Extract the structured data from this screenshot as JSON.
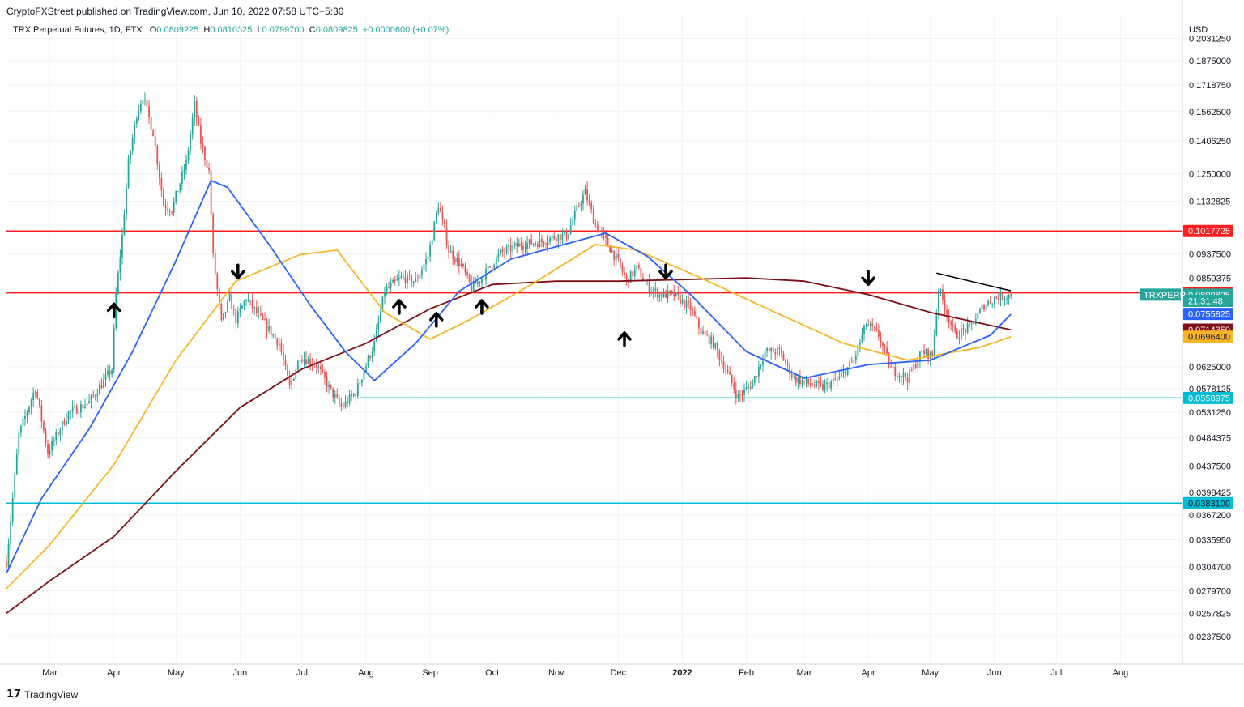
{
  "header": {
    "text": "CryptoFXStreet published on TradingView.com, Jun 10, 2022 07:58 UTC+5:30"
  },
  "legend": {
    "symbol": "TRX Perpetual Futures, 1D, FTX",
    "o_label": "O",
    "o": "0.0809225",
    "h_label": "H",
    "h": "0.0810325",
    "l_label": "L",
    "l": "0.0799700",
    "c_label": "C",
    "c": "0.0809825",
    "change": "+0.0000600 (+0.07%)"
  },
  "footer": {
    "logo": "17",
    "brand": "TradingView"
  },
  "colors": {
    "up": "#26a69a",
    "down": "#ef5350",
    "sma50": "#2962ff",
    "sma100": "#f7b527",
    "sma200": "#7f1019",
    "resistance": "#ff1f1f",
    "support": "#00bcd4",
    "grid": "#f0f3fa",
    "trendline": "#000000"
  },
  "chart_data": {
    "type": "candlestick",
    "currency_label": "USD",
    "y_scale": "log",
    "ylim": [
      0.0215,
      0.215
    ],
    "y_ticks": [
      "0.2031250",
      "0.1875000",
      "0.1718750",
      "0.1562500",
      "0.1406250",
      "0.1250000",
      "0.1132825",
      "0.0937500",
      "0.0625000",
      "0.0578125",
      "0.0531250",
      "0.0484375",
      "0.0437500",
      "0.0398425",
      "0.0367200",
      "0.0335950",
      "0.0304700",
      "0.0279700",
      "0.0257825",
      "0.0237500"
    ],
    "x_ticks": [
      "Mar",
      "Apr",
      "May",
      "Jun",
      "Jul",
      "Aug",
      "Sep",
      "Oct",
      "Nov",
      "Dec",
      "2022",
      "Feb",
      "Mar",
      "Apr",
      "May",
      "Jun",
      "Jul",
      "Aug"
    ],
    "x_range": [
      "2021-02-08",
      "2022-08-31"
    ],
    "ohlc_keypoints": [
      [
        "2021-02-08",
        0.031
      ],
      [
        "2021-02-14",
        0.049
      ],
      [
        "2021-02-22",
        0.058
      ],
      [
        "2021-02-28",
        0.046
      ],
      [
        "2021-03-10",
        0.053
      ],
      [
        "2021-03-20",
        0.055
      ],
      [
        "2021-03-31",
        0.062
      ],
      [
        "2021-04-02",
        0.081
      ],
      [
        "2021-04-05",
        0.1
      ],
      [
        "2021-04-08",
        0.13
      ],
      [
        "2021-04-12",
        0.155
      ],
      [
        "2021-04-15",
        0.165
      ],
      [
        "2021-04-20",
        0.145
      ],
      [
        "2021-04-25",
        0.112
      ],
      [
        "2021-04-29",
        0.11
      ],
      [
        "2021-05-06",
        0.13
      ],
      [
        "2021-05-10",
        0.16
      ],
      [
        "2021-05-13",
        0.14
      ],
      [
        "2021-05-17",
        0.126
      ],
      [
        "2021-05-19",
        0.093
      ],
      [
        "2021-05-23",
        0.073
      ],
      [
        "2021-05-27",
        0.08
      ],
      [
        "2021-05-30",
        0.074
      ],
      [
        "2021-06-04",
        0.08
      ],
      [
        "2021-06-10",
        0.075
      ],
      [
        "2021-06-20",
        0.068
      ],
      [
        "2021-06-25",
        0.058
      ],
      [
        "2021-06-30",
        0.065
      ],
      [
        "2021-07-08",
        0.063
      ],
      [
        "2021-07-14",
        0.058
      ],
      [
        "2021-07-20",
        0.054
      ],
      [
        "2021-07-27",
        0.057
      ],
      [
        "2021-08-05",
        0.068
      ],
      [
        "2021-08-10",
        0.082
      ],
      [
        "2021-08-18",
        0.086
      ],
      [
        "2021-08-25",
        0.085
      ],
      [
        "2021-08-31",
        0.093
      ],
      [
        "2021-09-05",
        0.112
      ],
      [
        "2021-09-10",
        0.095
      ],
      [
        "2021-09-16",
        0.09
      ],
      [
        "2021-09-21",
        0.083
      ],
      [
        "2021-09-26",
        0.086
      ],
      [
        "2021-10-05",
        0.094
      ],
      [
        "2021-10-15",
        0.097
      ],
      [
        "2021-10-25",
        0.098
      ],
      [
        "2021-11-01",
        0.1
      ],
      [
        "2021-11-06",
        0.1
      ],
      [
        "2021-11-12",
        0.112
      ],
      [
        "2021-11-15",
        0.117
      ],
      [
        "2021-11-20",
        0.104
      ],
      [
        "2021-11-26",
        0.097
      ],
      [
        "2021-12-01",
        0.091
      ],
      [
        "2021-12-05",
        0.085
      ],
      [
        "2021-12-10",
        0.089
      ],
      [
        "2021-12-16",
        0.083
      ],
      [
        "2021-12-21",
        0.081
      ],
      [
        "2021-12-28",
        0.081
      ],
      [
        "2022-01-05",
        0.077
      ],
      [
        "2022-01-10",
        0.071
      ],
      [
        "2022-01-16",
        0.068
      ],
      [
        "2022-01-22",
        0.062
      ],
      [
        "2022-01-28",
        0.056
      ],
      [
        "2022-02-04",
        0.059
      ],
      [
        "2022-02-10",
        0.066
      ],
      [
        "2022-02-17",
        0.066
      ],
      [
        "2022-02-24",
        0.06
      ],
      [
        "2022-03-02",
        0.059
      ],
      [
        "2022-03-10",
        0.058
      ],
      [
        "2022-03-18",
        0.06
      ],
      [
        "2022-03-25",
        0.064
      ],
      [
        "2022-03-31",
        0.073
      ],
      [
        "2022-04-06",
        0.07
      ],
      [
        "2022-04-12",
        0.062
      ],
      [
        "2022-04-20",
        0.06
      ],
      [
        "2022-04-27",
        0.066
      ],
      [
        "2022-05-02",
        0.065
      ],
      [
        "2022-05-05",
        0.083
      ],
      [
        "2022-05-09",
        0.076
      ],
      [
        "2022-05-13",
        0.07
      ],
      [
        "2022-05-20",
        0.072
      ],
      [
        "2022-05-27",
        0.078
      ],
      [
        "2022-06-01",
        0.08
      ],
      [
        "2022-06-09",
        0.081
      ]
    ],
    "sma50_points": [
      [
        "2021-02-08",
        0.0298
      ],
      [
        "2021-02-25",
        0.039
      ],
      [
        "2021-03-20",
        0.05
      ],
      [
        "2021-04-10",
        0.066
      ],
      [
        "2021-04-30",
        0.09
      ],
      [
        "2021-05-18",
        0.122
      ],
      [
        "2021-05-26",
        0.119
      ],
      [
        "2021-06-15",
        0.097
      ],
      [
        "2021-07-05",
        0.078
      ],
      [
        "2021-07-22",
        0.066
      ],
      [
        "2021-08-05",
        0.0595
      ],
      [
        "2021-08-25",
        0.068
      ],
      [
        "2021-09-15",
        0.082
      ],
      [
        "2021-10-10",
        0.092
      ],
      [
        "2021-11-05",
        0.097
      ],
      [
        "2021-11-25",
        0.101
      ],
      [
        "2021-12-15",
        0.093
      ],
      [
        "2022-01-05",
        0.081
      ],
      [
        "2022-02-01",
        0.066
      ],
      [
        "2022-03-01",
        0.06
      ],
      [
        "2022-04-01",
        0.063
      ],
      [
        "2022-05-01",
        0.064
      ],
      [
        "2022-05-30",
        0.07
      ],
      [
        "2022-06-09",
        0.0755
      ]
    ],
    "sma100_points": [
      [
        "2021-02-08",
        0.0282
      ],
      [
        "2021-03-01",
        0.033
      ],
      [
        "2021-04-01",
        0.044
      ],
      [
        "2021-05-01",
        0.064
      ],
      [
        "2021-05-30",
        0.085
      ],
      [
        "2021-06-30",
        0.0935
      ],
      [
        "2021-07-18",
        0.095
      ],
      [
        "2021-08-10",
        0.076
      ],
      [
        "2021-09-01",
        0.069
      ],
      [
        "2021-09-20",
        0.074
      ],
      [
        "2021-10-20",
        0.084
      ],
      [
        "2021-11-20",
        0.097
      ],
      [
        "2021-12-10",
        0.095
      ],
      [
        "2022-01-10",
        0.086
      ],
      [
        "2022-02-15",
        0.076
      ],
      [
        "2022-03-20",
        0.068
      ],
      [
        "2022-04-20",
        0.064
      ],
      [
        "2022-05-25",
        0.067
      ],
      [
        "2022-06-09",
        0.0696
      ]
    ],
    "sma200_points": [
      [
        "2021-02-08",
        0.0258
      ],
      [
        "2021-03-01",
        0.029
      ],
      [
        "2021-04-01",
        0.034
      ],
      [
        "2021-05-01",
        0.043
      ],
      [
        "2021-06-01",
        0.054
      ],
      [
        "2021-07-01",
        0.062
      ],
      [
        "2021-08-01",
        0.068
      ],
      [
        "2021-09-01",
        0.077
      ],
      [
        "2021-10-01",
        0.084
      ],
      [
        "2021-11-01",
        0.085
      ],
      [
        "2021-12-01",
        0.085
      ],
      [
        "2022-01-01",
        0.0855
      ],
      [
        "2022-02-01",
        0.086
      ],
      [
        "2022-03-01",
        0.085
      ],
      [
        "2022-04-01",
        0.081
      ],
      [
        "2022-05-01",
        0.076
      ],
      [
        "2022-06-09",
        0.0714
      ]
    ],
    "horizontal_levels": [
      {
        "value": 0.1017725,
        "kind": "resistance",
        "from": "2021-02-08"
      },
      {
        "value": 0.0815125,
        "kind": "resistance",
        "from": "2021-02-08"
      },
      {
        "value": 0.0558975,
        "kind": "support",
        "from": "2021-07-29"
      },
      {
        "value": 0.03831,
        "kind": "support",
        "from": "2021-02-08"
      }
    ],
    "trendline": [
      [
        "2022-05-04",
        0.0875
      ],
      [
        "2022-06-09",
        0.0821
      ]
    ],
    "arrows": [
      {
        "date": "2021-04-01",
        "price": 0.0765,
        "dir": "up"
      },
      {
        "date": "2021-05-31",
        "price": 0.088,
        "dir": "down"
      },
      {
        "date": "2021-08-17",
        "price": 0.0775,
        "dir": "up"
      },
      {
        "date": "2021-09-04",
        "price": 0.074,
        "dir": "up"
      },
      {
        "date": "2021-09-26",
        "price": 0.0775,
        "dir": "up"
      },
      {
        "date": "2021-12-04",
        "price": 0.069,
        "dir": "up"
      },
      {
        "date": "2021-12-24",
        "price": 0.088,
        "dir": "down"
      },
      {
        "date": "2022-04-01",
        "price": 0.086,
        "dir": "down"
      }
    ],
    "price_badges": [
      {
        "label": "0.1017725",
        "value": 0.1017725,
        "bg": "#ff1f1f",
        "fg": "#ffffff"
      },
      {
        "label": "0.0815125",
        "value": 0.0815125,
        "bg": "#ff1f1f",
        "fg": "#ffffff"
      },
      {
        "label": "0.0809825",
        "value": 0.0809825,
        "bg": "#26a69a",
        "fg": "#ffffff"
      },
      {
        "label": "21:31:48",
        "value": 0.0792,
        "bg": "#26a69a",
        "fg": "#ffffff"
      },
      {
        "label": "0.0755825",
        "value": 0.0755825,
        "bg": "#2962ff",
        "fg": "#ffffff"
      },
      {
        "label": "0.0714350",
        "value": 0.071435,
        "bg": "#7f1019",
        "fg": "#ffffff"
      },
      {
        "label": "0.0696400",
        "value": 0.06964,
        "bg": "#f7b527",
        "fg": "#131722"
      },
      {
        "label": "0.0558975",
        "value": 0.0558975,
        "bg": "#00bcd4",
        "fg": "#ffffff"
      },
      {
        "label": "0.0383100",
        "value": 0.03831,
        "bg": "#00bcd4",
        "fg": "#131722"
      }
    ],
    "symbol_badge": "TRXPERP",
    "hidden_tick": "0.0859375"
  }
}
